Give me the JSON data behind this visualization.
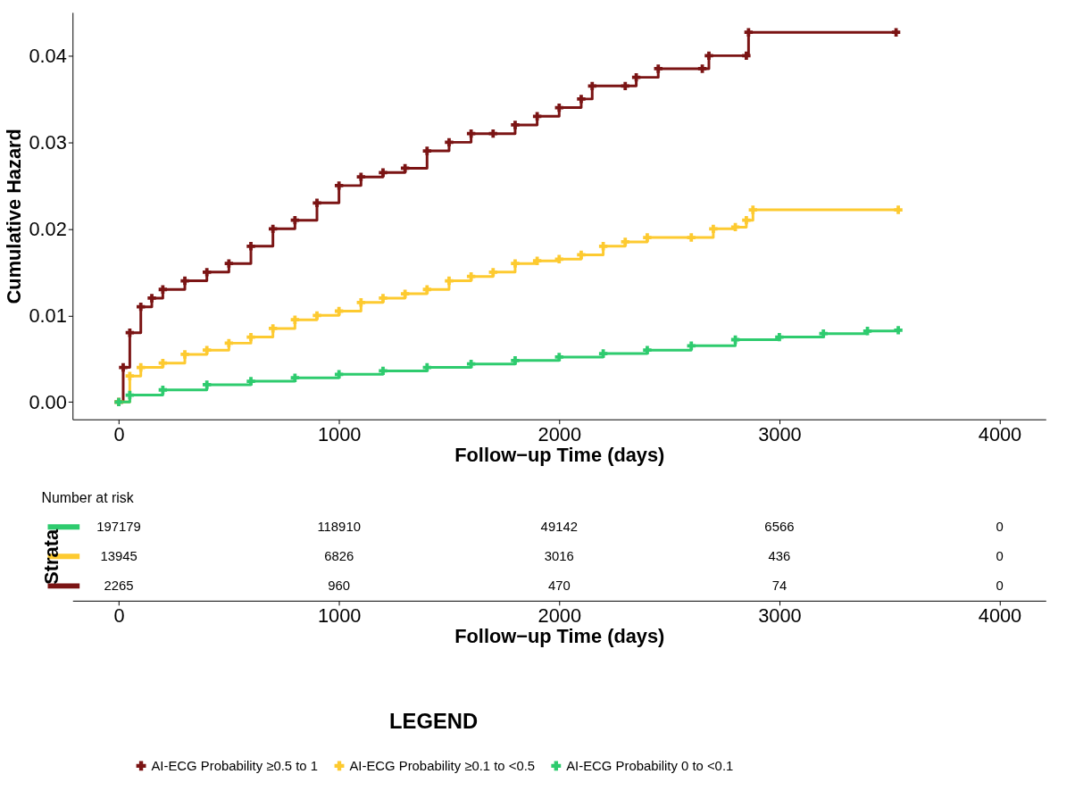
{
  "chart_data": [
    {
      "type": "step",
      "xlabel": "Follow−up Time (days)",
      "ylabel": "Cumulative Hazard",
      "legend_title": "LEGEND",
      "legend": "bottom",
      "grid": false,
      "marker": "cross",
      "line_style": "solid",
      "xlim": [
        -210,
        4210
      ],
      "xticks": [
        0,
        1000,
        2000,
        3000,
        4000
      ],
      "ylim": [
        -0.002,
        0.045
      ],
      "yticks": [
        {
          "value": 0,
          "label": "0.00"
        },
        {
          "value": 0.01,
          "label": "0.01"
        },
        {
          "value": 0.02,
          "label": "0.02"
        },
        {
          "value": 0.03,
          "label": "0.03"
        },
        {
          "value": 0.04,
          "label": "0.04"
        }
      ],
      "series": [
        {
          "name": "AI-ECG Probability ≥0.5 to 1",
          "color": "#7b1414",
          "x": [
            0,
            20,
            50,
            100,
            150,
            200,
            300,
            400,
            500,
            600,
            700,
            800,
            900,
            1000,
            1100,
            1200,
            1300,
            1400,
            1500,
            1600,
            1700,
            1800,
            1900,
            2000,
            2100,
            2150,
            2300,
            2350,
            2450,
            2650,
            2680,
            2850,
            2860,
            3530
          ],
          "values": [
            0,
            0.004,
            0.008,
            0.011,
            0.012,
            0.013,
            0.014,
            0.015,
            0.016,
            0.018,
            0.02,
            0.021,
            0.023,
            0.025,
            0.026,
            0.0265,
            0.027,
            0.029,
            0.03,
            0.031,
            0.031,
            0.032,
            0.033,
            0.034,
            0.035,
            0.0365,
            0.0365,
            0.0375,
            0.0385,
            0.0385,
            0.04,
            0.04,
            0.0427,
            0.0427
          ]
        },
        {
          "name": "AI-ECG Probability ≥0.1 to <0.5",
          "color": "#fdca30",
          "x": [
            0,
            50,
            100,
            200,
            300,
            400,
            500,
            600,
            700,
            800,
            900,
            1000,
            1100,
            1200,
            1300,
            1400,
            1500,
            1600,
            1700,
            1800,
            1900,
            2000,
            2100,
            2200,
            2300,
            2400,
            2600,
            2700,
            2800,
            2850,
            2880,
            3540
          ],
          "values": [
            0,
            0.003,
            0.004,
            0.0045,
            0.0055,
            0.006,
            0.0068,
            0.0075,
            0.0085,
            0.0095,
            0.01,
            0.0105,
            0.0115,
            0.012,
            0.0125,
            0.013,
            0.014,
            0.0145,
            0.015,
            0.016,
            0.0163,
            0.0165,
            0.017,
            0.018,
            0.0185,
            0.019,
            0.019,
            0.02,
            0.0202,
            0.021,
            0.0222,
            0.0222
          ]
        },
        {
          "name": "AI-ECG Probability 0 to <0.1",
          "color": "#2ecb6e",
          "x": [
            0,
            50,
            200,
            400,
            600,
            800,
            1000,
            1200,
            1400,
            1600,
            1800,
            2000,
            2200,
            2400,
            2600,
            2800,
            3000,
            3200,
            3400,
            3540
          ],
          "values": [
            0,
            0.0008,
            0.0014,
            0.002,
            0.0024,
            0.0028,
            0.0032,
            0.0036,
            0.004,
            0.0044,
            0.0048,
            0.0052,
            0.0056,
            0.006,
            0.0065,
            0.0072,
            0.0075,
            0.0079,
            0.0082,
            0.0083
          ]
        }
      ]
    },
    {
      "type": "heatmap",
      "title": "Number at risk",
      "ylabel": "Strata",
      "xlabel": "Follow−up Time (days)",
      "categories": [
        "0",
        "1000",
        "2000",
        "3000",
        "4000"
      ],
      "y_categories": [
        null,
        null,
        null
      ],
      "data_labels": true,
      "cells": [
        [
          197179,
          118910,
          49142,
          6566,
          0
        ],
        [
          13945,
          6826,
          3016,
          436,
          0
        ],
        [
          2265,
          960,
          470,
          74,
          0
        ]
      ]
    }
  ]
}
